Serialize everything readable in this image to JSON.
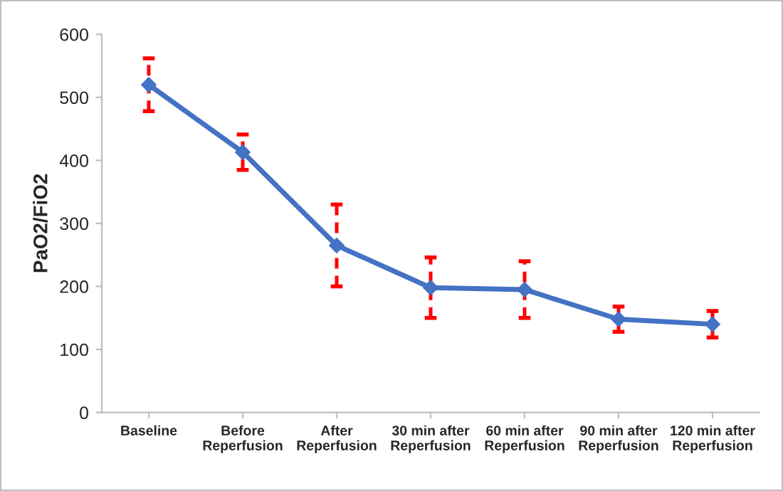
{
  "chart_data": {
    "type": "line",
    "ylabel": "PaO2/FiO2",
    "categories": [
      "Baseline",
      "Before\nReperfusion",
      "After\nReperfusion",
      "30 min after\nReperfusion",
      "60 min after\nReperfusion",
      "90 min after\nReperfusion",
      "120 min after\nReperfusion"
    ],
    "series": [
      {
        "color": "#4472c4",
        "values": [
          520,
          413,
          265,
          198,
          195,
          148,
          140
        ],
        "errors": [
          42,
          28,
          65,
          48,
          45,
          20,
          21
        ]
      }
    ],
    "ylim": [
      0,
      600
    ],
    "yticks": [
      0,
      100,
      200,
      300,
      400,
      500,
      600
    ],
    "grid": false,
    "marker": "diamond",
    "line_style": "solid",
    "legend": false
  }
}
